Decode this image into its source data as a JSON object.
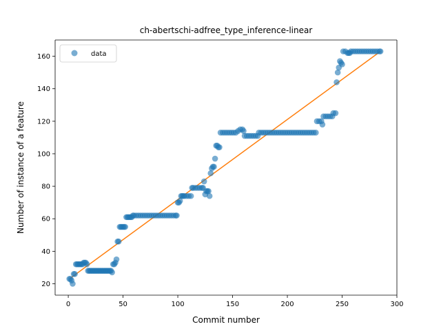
{
  "chart_data": {
    "type": "scatter",
    "title": "ch-abertschi-adfree_type_inference-linear",
    "xlabel": "Commit number",
    "ylabel": "Number of instance of a feature",
    "xlim": [
      -12,
      300
    ],
    "ylim": [
      13,
      170
    ],
    "xticks": [
      0,
      50,
      100,
      150,
      200,
      250,
      300
    ],
    "yticks": [
      20,
      40,
      60,
      80,
      100,
      120,
      140,
      160
    ],
    "grid": false,
    "legend": {
      "placement": "top-left",
      "entries": [
        "data"
      ]
    },
    "colors": {
      "points": "#1f77b4",
      "fit": "#ff7f0e"
    },
    "series": [
      {
        "name": "data",
        "points": [
          [
            1,
            23
          ],
          [
            2,
            23
          ],
          [
            3,
            22
          ],
          [
            4,
            20
          ],
          [
            5,
            26
          ],
          [
            6,
            26
          ],
          [
            7,
            32
          ],
          [
            8,
            32
          ],
          [
            9,
            32
          ],
          [
            10,
            32
          ],
          [
            11,
            32
          ],
          [
            12,
            32
          ],
          [
            13,
            32
          ],
          [
            14,
            33
          ],
          [
            15,
            33
          ],
          [
            16,
            33
          ],
          [
            17,
            32
          ],
          [
            18,
            28
          ],
          [
            19,
            28
          ],
          [
            20,
            28
          ],
          [
            21,
            28
          ],
          [
            22,
            28
          ],
          [
            23,
            28
          ],
          [
            24,
            28
          ],
          [
            25,
            28
          ],
          [
            26,
            28
          ],
          [
            27,
            28
          ],
          [
            28,
            28
          ],
          [
            29,
            28
          ],
          [
            30,
            28
          ],
          [
            31,
            28
          ],
          [
            32,
            28
          ],
          [
            33,
            28
          ],
          [
            34,
            28
          ],
          [
            35,
            28
          ],
          [
            36,
            28
          ],
          [
            37,
            28
          ],
          [
            38,
            28
          ],
          [
            39,
            28
          ],
          [
            40,
            27
          ],
          [
            41,
            32
          ],
          [
            42,
            32
          ],
          [
            43,
            33
          ],
          [
            44,
            35
          ],
          [
            45,
            46
          ],
          [
            46,
            46
          ],
          [
            47,
            55
          ],
          [
            48,
            55
          ],
          [
            49,
            55
          ],
          [
            50,
            55
          ],
          [
            51,
            55
          ],
          [
            52,
            55
          ],
          [
            53,
            61
          ],
          [
            54,
            61
          ],
          [
            55,
            61
          ],
          [
            56,
            61
          ],
          [
            57,
            61
          ],
          [
            58,
            61
          ],
          [
            59,
            62
          ],
          [
            60,
            62
          ],
          [
            62,
            62
          ],
          [
            64,
            62
          ],
          [
            66,
            62
          ],
          [
            68,
            62
          ],
          [
            70,
            62
          ],
          [
            72,
            62
          ],
          [
            74,
            62
          ],
          [
            76,
            62
          ],
          [
            78,
            62
          ],
          [
            80,
            62
          ],
          [
            82,
            62
          ],
          [
            84,
            62
          ],
          [
            86,
            62
          ],
          [
            88,
            62
          ],
          [
            90,
            62
          ],
          [
            92,
            62
          ],
          [
            94,
            62
          ],
          [
            96,
            62
          ],
          [
            98,
            62
          ],
          [
            99,
            62
          ],
          [
            100,
            70
          ],
          [
            101,
            70
          ],
          [
            102,
            71
          ],
          [
            103,
            74
          ],
          [
            104,
            74
          ],
          [
            105,
            74
          ],
          [
            106,
            74
          ],
          [
            108,
            74
          ],
          [
            110,
            74
          ],
          [
            112,
            74
          ],
          [
            113,
            79
          ],
          [
            114,
            79
          ],
          [
            116,
            79
          ],
          [
            118,
            79
          ],
          [
            120,
            79
          ],
          [
            122,
            79
          ],
          [
            123,
            79
          ],
          [
            124,
            83
          ],
          [
            125,
            75
          ],
          [
            126,
            77
          ],
          [
            127,
            77
          ],
          [
            128,
            77
          ],
          [
            129,
            74
          ],
          [
            130,
            88
          ],
          [
            131,
            91
          ],
          [
            132,
            92
          ],
          [
            133,
            92
          ],
          [
            134,
            97
          ],
          [
            135,
            105
          ],
          [
            136,
            105
          ],
          [
            137,
            104
          ],
          [
            138,
            104
          ],
          [
            139,
            113
          ],
          [
            141,
            113
          ],
          [
            143,
            113
          ],
          [
            145,
            113
          ],
          [
            147,
            113
          ],
          [
            149,
            113
          ],
          [
            151,
            113
          ],
          [
            153,
            113
          ],
          [
            155,
            114
          ],
          [
            157,
            115
          ],
          [
            159,
            115
          ],
          [
            160,
            114
          ],
          [
            161,
            111
          ],
          [
            163,
            111
          ],
          [
            165,
            111
          ],
          [
            167,
            111
          ],
          [
            169,
            111
          ],
          [
            171,
            111
          ],
          [
            173,
            111
          ],
          [
            174,
            113
          ],
          [
            176,
            113
          ],
          [
            178,
            113
          ],
          [
            180,
            113
          ],
          [
            182,
            113
          ],
          [
            184,
            113
          ],
          [
            186,
            113
          ],
          [
            188,
            113
          ],
          [
            190,
            113
          ],
          [
            192,
            113
          ],
          [
            194,
            113
          ],
          [
            196,
            113
          ],
          [
            198,
            113
          ],
          [
            200,
            113
          ],
          [
            202,
            113
          ],
          [
            204,
            113
          ],
          [
            206,
            113
          ],
          [
            208,
            113
          ],
          [
            210,
            113
          ],
          [
            212,
            113
          ],
          [
            214,
            113
          ],
          [
            216,
            113
          ],
          [
            218,
            113
          ],
          [
            220,
            113
          ],
          [
            222,
            113
          ],
          [
            224,
            113
          ],
          [
            226,
            113
          ],
          [
            227,
            120
          ],
          [
            229,
            120
          ],
          [
            231,
            120
          ],
          [
            232,
            118
          ],
          [
            233,
            123
          ],
          [
            235,
            123
          ],
          [
            237,
            123
          ],
          [
            239,
            123
          ],
          [
            241,
            123
          ],
          [
            242,
            125
          ],
          [
            244,
            125
          ],
          [
            245,
            144
          ],
          [
            246,
            150
          ],
          [
            247,
            153
          ],
          [
            248,
            157
          ],
          [
            249,
            156
          ],
          [
            250,
            155
          ],
          [
            251,
            163
          ],
          [
            253,
            163
          ],
          [
            255,
            162
          ],
          [
            256,
            162
          ],
          [
            257,
            162
          ],
          [
            258,
            163
          ],
          [
            260,
            163
          ],
          [
            262,
            163
          ],
          [
            264,
            163
          ],
          [
            266,
            163
          ],
          [
            268,
            163
          ],
          [
            270,
            163
          ],
          [
            272,
            163
          ],
          [
            274,
            163
          ],
          [
            276,
            163
          ],
          [
            278,
            163
          ],
          [
            280,
            163
          ],
          [
            282,
            163
          ],
          [
            284,
            163
          ],
          [
            285,
            163
          ]
        ]
      },
      {
        "name": "",
        "type": "line",
        "points": [
          [
            1,
            23
          ],
          [
            285,
            163
          ]
        ]
      }
    ]
  }
}
